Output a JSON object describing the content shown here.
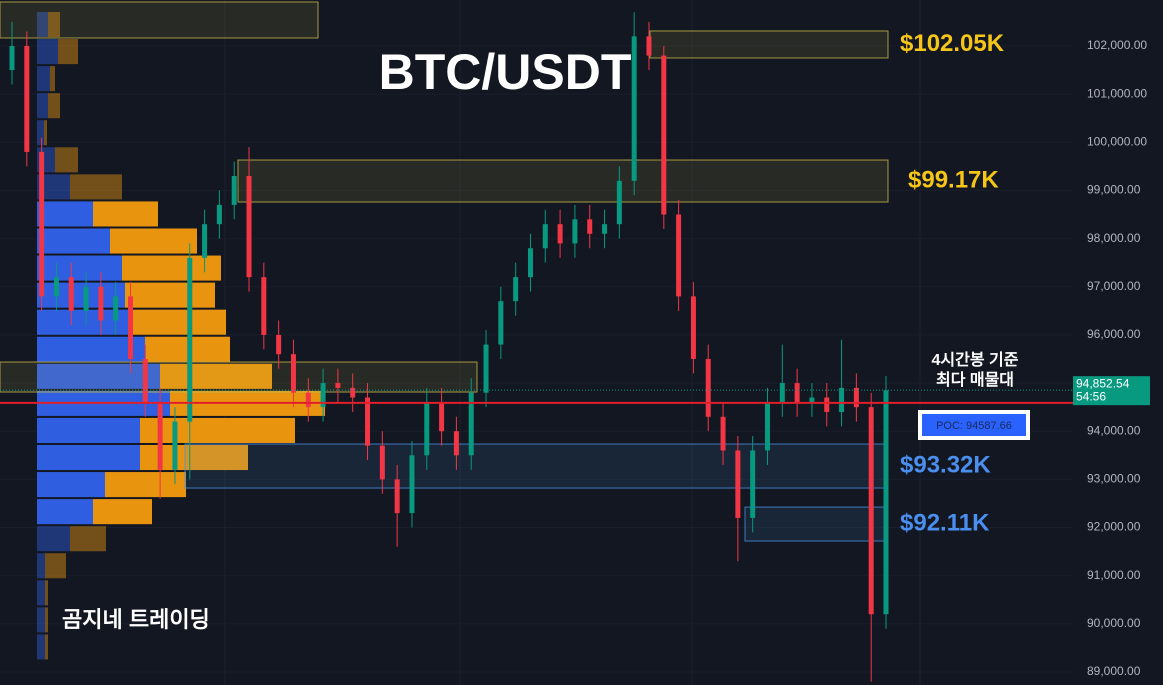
{
  "chart_data": {
    "type": "candlestick",
    "title": "BTC/USDT",
    "ylim": [
      88730,
      102955
    ],
    "yticks": [
      {
        "value": 89000,
        "label": "89,000.00"
      },
      {
        "value": 90000,
        "label": "90,000.00"
      },
      {
        "value": 91000,
        "label": "91,000.00"
      },
      {
        "value": 92000,
        "label": "92,000.00"
      },
      {
        "value": 93000,
        "label": "93,000.00"
      },
      {
        "value": 94000,
        "label": "94,000.00"
      },
      {
        "value": 95000,
        "label": "95,000.00"
      },
      {
        "value": 96000,
        "label": "96,000.00"
      },
      {
        "value": 97000,
        "label": "97,000.00"
      },
      {
        "value": 98000,
        "label": "98,000.00"
      },
      {
        "value": 99000,
        "label": "99,000.00"
      },
      {
        "value": 100000,
        "label": "100,000.00"
      },
      {
        "value": 101000,
        "label": "101,000.00"
      },
      {
        "value": 102000,
        "label": "102,000.00"
      }
    ],
    "up_color": "#089981",
    "down_color": "#f23645",
    "open": [
      101500,
      102000,
      99800,
      96800,
      97200,
      96500,
      97000,
      96300,
      96800,
      95500,
      94600,
      93200,
      94200,
      97600,
      98300,
      98700,
      99300,
      97200,
      96000,
      95600,
      94800,
      94500,
      95000,
      94900,
      94700,
      93700,
      93000,
      92300,
      93500,
      94600,
      94000,
      93500,
      94800,
      95800,
      96700,
      97200,
      97800,
      98300,
      97900,
      98400,
      98100,
      98300,
      99200,
      102200,
      101800,
      98500,
      96800,
      95500,
      94300,
      93600,
      92200,
      93600,
      94600,
      95000,
      94600,
      94700,
      94400,
      94900,
      94500,
      90200
    ],
    "high": [
      102500,
      102300,
      100100,
      97500,
      97500,
      97300,
      97300,
      97100,
      97100,
      95800,
      94900,
      94500,
      97900,
      98600,
      99000,
      99600,
      99900,
      97500,
      96300,
      95900,
      95100,
      95300,
      95300,
      95200,
      95000,
      94000,
      93300,
      93800,
      94900,
      94900,
      94300,
      95100,
      96100,
      97000,
      97500,
      98100,
      98600,
      98600,
      98700,
      98700,
      98600,
      99500,
      102700,
      102500,
      102000,
      98800,
      97100,
      95800,
      94600,
      93900,
      93900,
      94900,
      95800,
      95300,
      95000,
      95000,
      95900,
      95200,
      94800,
      95150
    ],
    "low": [
      101200,
      99500,
      96500,
      96500,
      96200,
      96200,
      96000,
      96000,
      95200,
      94300,
      92600,
      92900,
      93000,
      97300,
      98000,
      98400,
      96900,
      95700,
      95300,
      94500,
      94200,
      94200,
      94600,
      94400,
      93400,
      92700,
      91600,
      92000,
      93200,
      93700,
      93200,
      93200,
      94500,
      95500,
      96400,
      96900,
      97500,
      97600,
      97600,
      97800,
      97800,
      98000,
      98900,
      101500,
      98200,
      96500,
      95200,
      94000,
      93300,
      91300,
      91900,
      93300,
      94300,
      94300,
      94300,
      94100,
      94100,
      94200,
      88800,
      89900
    ],
    "close": [
      102000,
      99800,
      96800,
      97200,
      96500,
      97000,
      96300,
      96800,
      95500,
      94600,
      93200,
      94200,
      97600,
      98300,
      98700,
      99300,
      97200,
      96000,
      95600,
      94800,
      94500,
      95000,
      94900,
      94700,
      93700,
      93000,
      92300,
      93500,
      94600,
      94000,
      93500,
      94800,
      95800,
      96700,
      97200,
      97800,
      98300,
      97900,
      98400,
      98100,
      98300,
      99200,
      102200,
      101800,
      98500,
      96800,
      95500,
      94300,
      93600,
      92200,
      93600,
      94600,
      95000,
      94600,
      94700,
      94400,
      94900,
      94500,
      90200,
      94850
    ],
    "profile": {
      "buy_color": "#2f5fe0",
      "sell_color": "#e8940f",
      "levels": [
        102446,
        101884,
        101322,
        100760,
        100198,
        99636,
        99074,
        98512,
        97950,
        97388,
        96826,
        96264,
        95702,
        95140,
        94578,
        94016,
        93454,
        92892,
        92330,
        91768,
        91206,
        90644,
        90082,
        89520
      ],
      "buy": [
        11,
        21,
        13,
        11,
        7,
        18,
        33,
        56,
        73,
        85,
        88,
        93,
        108,
        123,
        133,
        103,
        103,
        68,
        56,
        33,
        8,
        8,
        8,
        8
      ],
      "sell": [
        12,
        20,
        5,
        12,
        3,
        23,
        52,
        65,
        87,
        99,
        90,
        96,
        85,
        112,
        155,
        155,
        108,
        81,
        59,
        36,
        21,
        3,
        3,
        3
      ]
    },
    "zones": [
      {
        "low": 102166,
        "high": 102914,
        "color": "#c9b84a"
      },
      {
        "low": 101751,
        "high": 102312,
        "color": "#c9b84a",
        "label": "$102.05K",
        "label_color": "#f5c518"
      },
      {
        "low": 98760,
        "high": 99632,
        "color": "#c9b84a",
        "label": "$99.17K",
        "label_color": "#f5c518"
      },
      {
        "low": 94814,
        "high": 95437,
        "color": "#c9b84a"
      },
      {
        "low": 92820,
        "high": 93734,
        "color": "#4a90e2",
        "label": "$93.32K",
        "label_color": "#4a8ff0"
      },
      {
        "low": 91720,
        "high": 92425,
        "color": "#4a90e2",
        "label": "$92.11K",
        "label_color": "#4a8ff0"
      }
    ],
    "poc": {
      "value": 94587.66,
      "label": "POC: 94587.66",
      "color": "#e01f2a"
    },
    "poc_note": [
      "4시간봉 기준",
      "최다 매물대"
    ],
    "last_price": {
      "value": 94852.54,
      "label": "94,852.54",
      "countdown": "54:56"
    },
    "watermark": "곰지네 트레이딩"
  }
}
